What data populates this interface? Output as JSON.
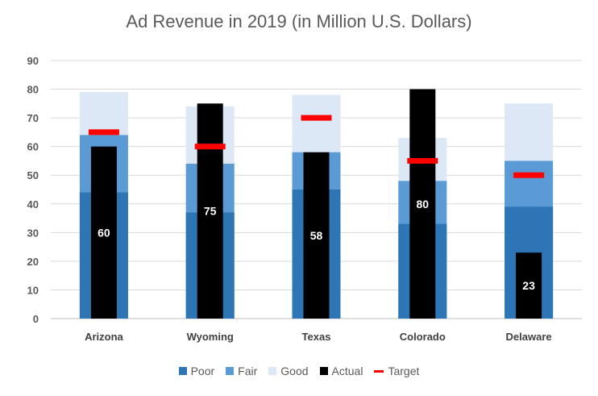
{
  "chart_data": {
    "type": "bar",
    "title": "Ad Revenue in 2019 (in Million U.S. Dollars)",
    "categories": [
      "Arizona",
      "Wyoming",
      "Texas",
      "Colorado",
      "Delaware"
    ],
    "ylim": [
      0,
      90
    ],
    "yticks": [
      0,
      10,
      20,
      30,
      40,
      50,
      60,
      70,
      80,
      90
    ],
    "grid": true,
    "series": [
      {
        "name": "Poor",
        "color": "#2e75b6",
        "values": [
          44,
          37,
          45,
          33,
          39
        ]
      },
      {
        "name": "Fair",
        "color": "#5b9bd5",
        "values": [
          64,
          54,
          58,
          48,
          55
        ]
      },
      {
        "name": "Good",
        "color": "#dce8f5",
        "values": [
          79,
          74,
          78,
          63,
          75
        ]
      },
      {
        "name": "Actual",
        "color": "#000000",
        "values": [
          60,
          75,
          58,
          80,
          23
        ]
      },
      {
        "name": "Target",
        "color": "#ff0000",
        "values": [
          65,
          60,
          70,
          55,
          50
        ]
      }
    ],
    "data_labels": [
      "60",
      "75",
      "58",
      "80",
      "23"
    ],
    "legend_position": "bottom"
  }
}
